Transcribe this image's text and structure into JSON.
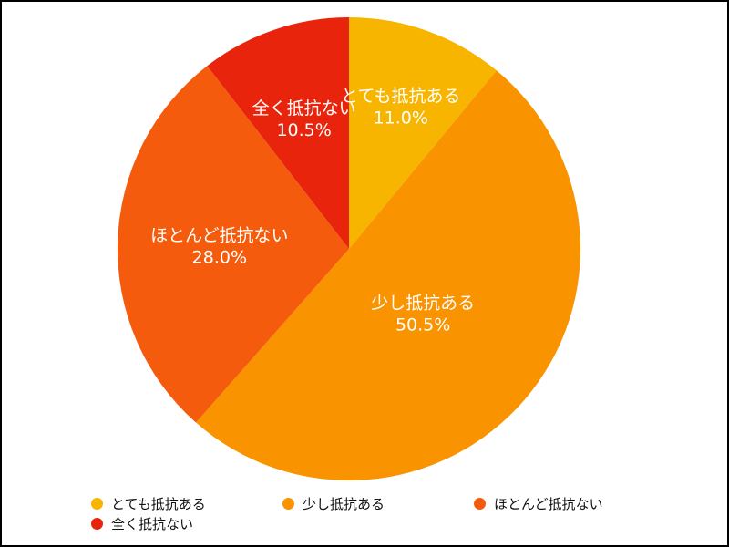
{
  "chart_data": {
    "type": "pie",
    "title": "",
    "categories": [
      "とても抵抗ある",
      "少し抵抗ある",
      "ほとんど抵抗ない",
      "全く抵抗ない"
    ],
    "values": [
      11.0,
      50.5,
      28.0,
      10.5
    ],
    "value_labels": [
      "11.0%",
      "50.5%",
      "28.0%",
      "10.5%"
    ],
    "colors": [
      "#f7b500",
      "#f99300",
      "#f45b0c",
      "#e8240d"
    ],
    "start_angle_deg": 0,
    "direction": "clockwise",
    "legend_position": "bottom",
    "legend": [
      {
        "label": "とても抵抗ある",
        "color": "#f7b500"
      },
      {
        "label": "少し抵抗ある",
        "color": "#f99300"
      },
      {
        "label": "ほとんど抵抗ない",
        "color": "#f45b0c"
      },
      {
        "label": "全く抵抗ない",
        "color": "#e8240d"
      }
    ]
  }
}
